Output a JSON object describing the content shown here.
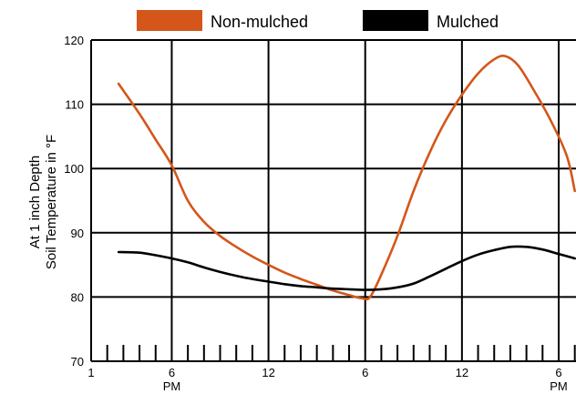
{
  "chart_data": {
    "type": "line",
    "ylabel_lines": [
      "At 1 inch Depth",
      "Soil Temperature in °F"
    ],
    "ylim": [
      70,
      120
    ],
    "y_ticks": [
      70,
      80,
      90,
      100,
      110,
      120
    ],
    "xlim": [
      1,
      31
    ],
    "x_ticks": [
      {
        "x": 1,
        "label": "1",
        "sub": ""
      },
      {
        "x": 6,
        "label": "6",
        "sub": "PM"
      },
      {
        "x": 12,
        "label": "12",
        "sub": ""
      },
      {
        "x": 18,
        "label": "6",
        "sub": ""
      },
      {
        "x": 24,
        "label": "12",
        "sub": ""
      },
      {
        "x": 30,
        "label": "6",
        "sub": "PM"
      }
    ],
    "grid": true,
    "legend_position": "top",
    "series": [
      {
        "name": "Non-mulched",
        "color": "#D4561A",
        "x": [
          2.7,
          4,
          5,
          6,
          7,
          8,
          9,
          10,
          11,
          12,
          13,
          14,
          15,
          16,
          17,
          17.8,
          18.3,
          19,
          20,
          21,
          22,
          23,
          24,
          25,
          26,
          26.7,
          27.5,
          28.5,
          29.5,
          30.5,
          31
        ],
        "values": [
          113.2,
          108.5,
          104.5,
          100.5,
          95,
          91.7,
          89.5,
          87.8,
          86.3,
          85,
          83.8,
          82.8,
          81.9,
          81,
          80.3,
          79.8,
          80,
          83.5,
          89.5,
          96.5,
          102.5,
          107.5,
          111.5,
          114.8,
          117,
          117.5,
          116,
          112,
          107.5,
          102,
          96.5
        ]
      },
      {
        "name": "Mulched",
        "color": "#000000",
        "x": [
          2.7,
          4,
          5,
          6,
          7,
          8,
          9,
          10,
          11,
          12,
          13,
          14,
          15,
          16,
          17,
          18,
          19,
          20,
          21,
          22,
          23,
          24,
          25,
          26,
          27,
          28,
          29,
          30,
          31
        ],
        "values": [
          87,
          86.9,
          86.5,
          86,
          85.4,
          84.6,
          83.9,
          83.3,
          82.8,
          82.4,
          82,
          81.7,
          81.5,
          81.3,
          81.2,
          81.1,
          81.2,
          81.5,
          82.1,
          83.2,
          84.4,
          85.6,
          86.6,
          87.3,
          87.8,
          87.8,
          87.4,
          86.7,
          86
        ]
      }
    ]
  }
}
